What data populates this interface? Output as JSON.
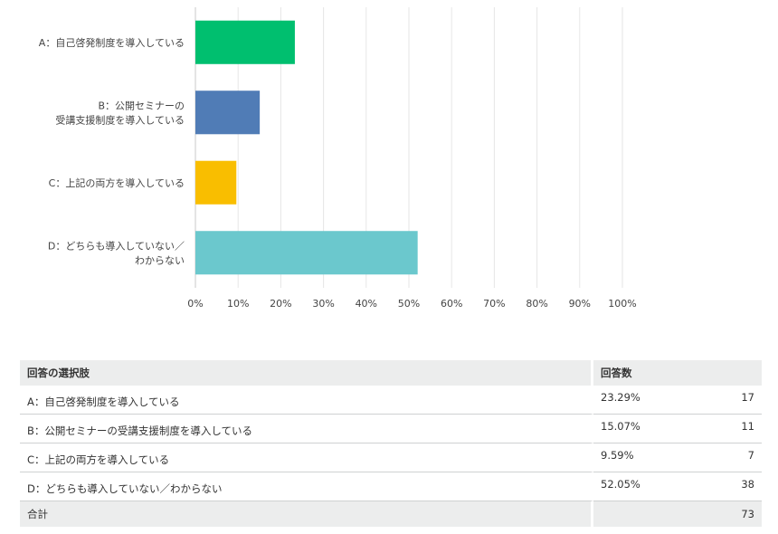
{
  "chart_data": {
    "type": "bar",
    "orientation": "horizontal",
    "categories": [
      [
        "A：自己啓発制度を導入している"
      ],
      [
        "B：公開セミナーの",
        "受講支援制度を導入している"
      ],
      [
        "C：上記の両方を導入している"
      ],
      [
        "D：どちらも導入していない／",
        "わからない"
      ]
    ],
    "values": [
      23.29,
      15.07,
      9.59,
      52.05
    ],
    "colors": [
      "#00bf6f",
      "#507cb6",
      "#f9be00",
      "#6bc8cd"
    ],
    "xlim": [
      0,
      100
    ],
    "xticks": [
      "0%",
      "10%",
      "20%",
      "30%",
      "40%",
      "50%",
      "60%",
      "70%",
      "80%",
      "90%",
      "100%"
    ],
    "grid": true
  },
  "table": {
    "headers": {
      "answer": "回答の選択肢",
      "responses": "回答数"
    },
    "rows": [
      {
        "answer": "A：自己啓発制度を導入している",
        "percent": "23.29%",
        "count": "17"
      },
      {
        "answer": "B：公開セミナーの受講支援制度を導入している",
        "percent": "15.07%",
        "count": "11"
      },
      {
        "answer": "C：上記の両方を導入している",
        "percent": "9.59%",
        "count": "7"
      },
      {
        "answer": "D：どちらも導入していない／わからない",
        "percent": "52.05%",
        "count": "38"
      }
    ],
    "total": {
      "label": "合計",
      "count": "73"
    }
  }
}
